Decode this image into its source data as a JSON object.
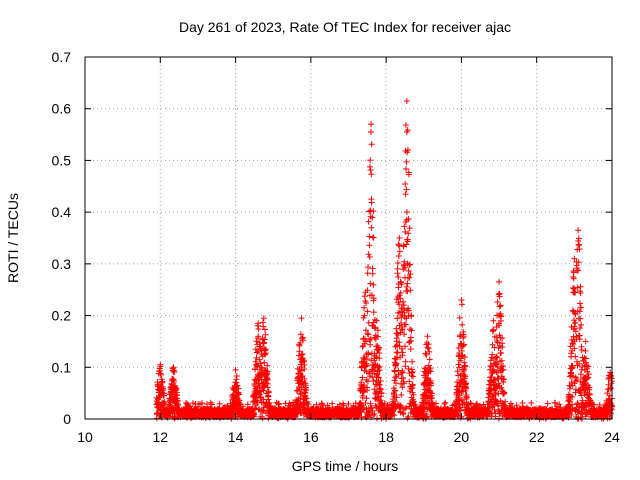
{
  "chart_data": {
    "type": "scatter",
    "title": "Day 261 of 2023, Rate Of TEC Index for receiver ajac",
    "xlabel": "GPS time / hours",
    "ylabel": "ROTI / TECUs",
    "xlim": [
      10,
      24
    ],
    "ylim": [
      0,
      0.7
    ],
    "x_ticks": [
      10,
      12,
      14,
      16,
      18,
      20,
      22,
      24
    ],
    "x_tick_labels": [
      "10",
      "12",
      "14",
      "16",
      "18",
      "20",
      "22",
      "24"
    ],
    "y_ticks": [
      0,
      0.1,
      0.2,
      0.3,
      0.4,
      0.5,
      0.6,
      0.7
    ],
    "y_tick_labels": [
      "0",
      "0.1",
      "0.2",
      "0.3",
      "0.4",
      "0.5",
      "0.6",
      "0.7"
    ],
    "grid": true,
    "marker": "+",
    "color": "#ff0000",
    "data_range_hours": [
      11.9,
      24.0
    ],
    "background_level": 0.02,
    "peaks": [
      {
        "x": 12.0,
        "y": 0.105
      },
      {
        "x": 12.35,
        "y": 0.1
      },
      {
        "x": 14.0,
        "y": 0.095
      },
      {
        "x": 14.6,
        "y": 0.185
      },
      {
        "x": 14.75,
        "y": 0.195
      },
      {
        "x": 15.75,
        "y": 0.195
      },
      {
        "x": 17.45,
        "y": 0.245
      },
      {
        "x": 17.6,
        "y": 0.57
      },
      {
        "x": 17.75,
        "y": 0.19
      },
      {
        "x": 18.35,
        "y": 0.35
      },
      {
        "x": 18.55,
        "y": 0.615
      },
      {
        "x": 19.1,
        "y": 0.16
      },
      {
        "x": 20.0,
        "y": 0.23
      },
      {
        "x": 20.85,
        "y": 0.19
      },
      {
        "x": 21.0,
        "y": 0.265
      },
      {
        "x": 23.0,
        "y": 0.31
      },
      {
        "x": 23.1,
        "y": 0.365
      },
      {
        "x": 23.3,
        "y": 0.15
      },
      {
        "x": 23.95,
        "y": 0.09
      }
    ]
  }
}
